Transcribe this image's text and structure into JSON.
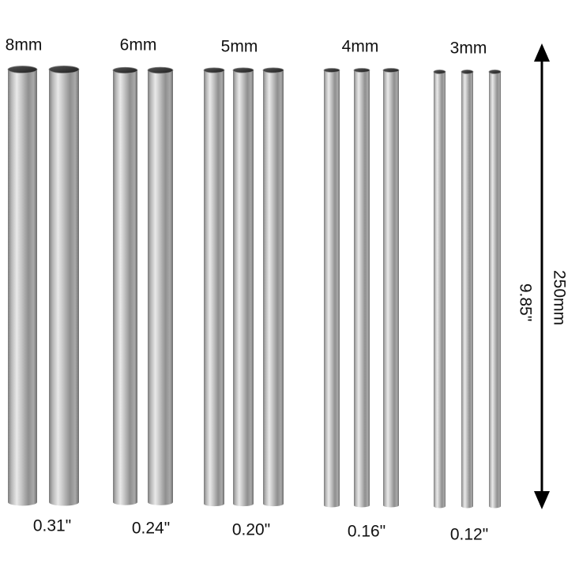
{
  "groups": [
    {
      "diameter_mm": "8mm",
      "diameter_in": "0.31\""
    },
    {
      "diameter_mm": "6mm",
      "diameter_in": "0.24\""
    },
    {
      "diameter_mm": "5mm",
      "diameter_in": "0.20\""
    },
    {
      "diameter_mm": "4mm",
      "diameter_in": "0.16\""
    },
    {
      "diameter_mm": "3mm",
      "diameter_in": "0.12\""
    }
  ],
  "length": {
    "mm": "250mm",
    "inch": "9.85\""
  }
}
